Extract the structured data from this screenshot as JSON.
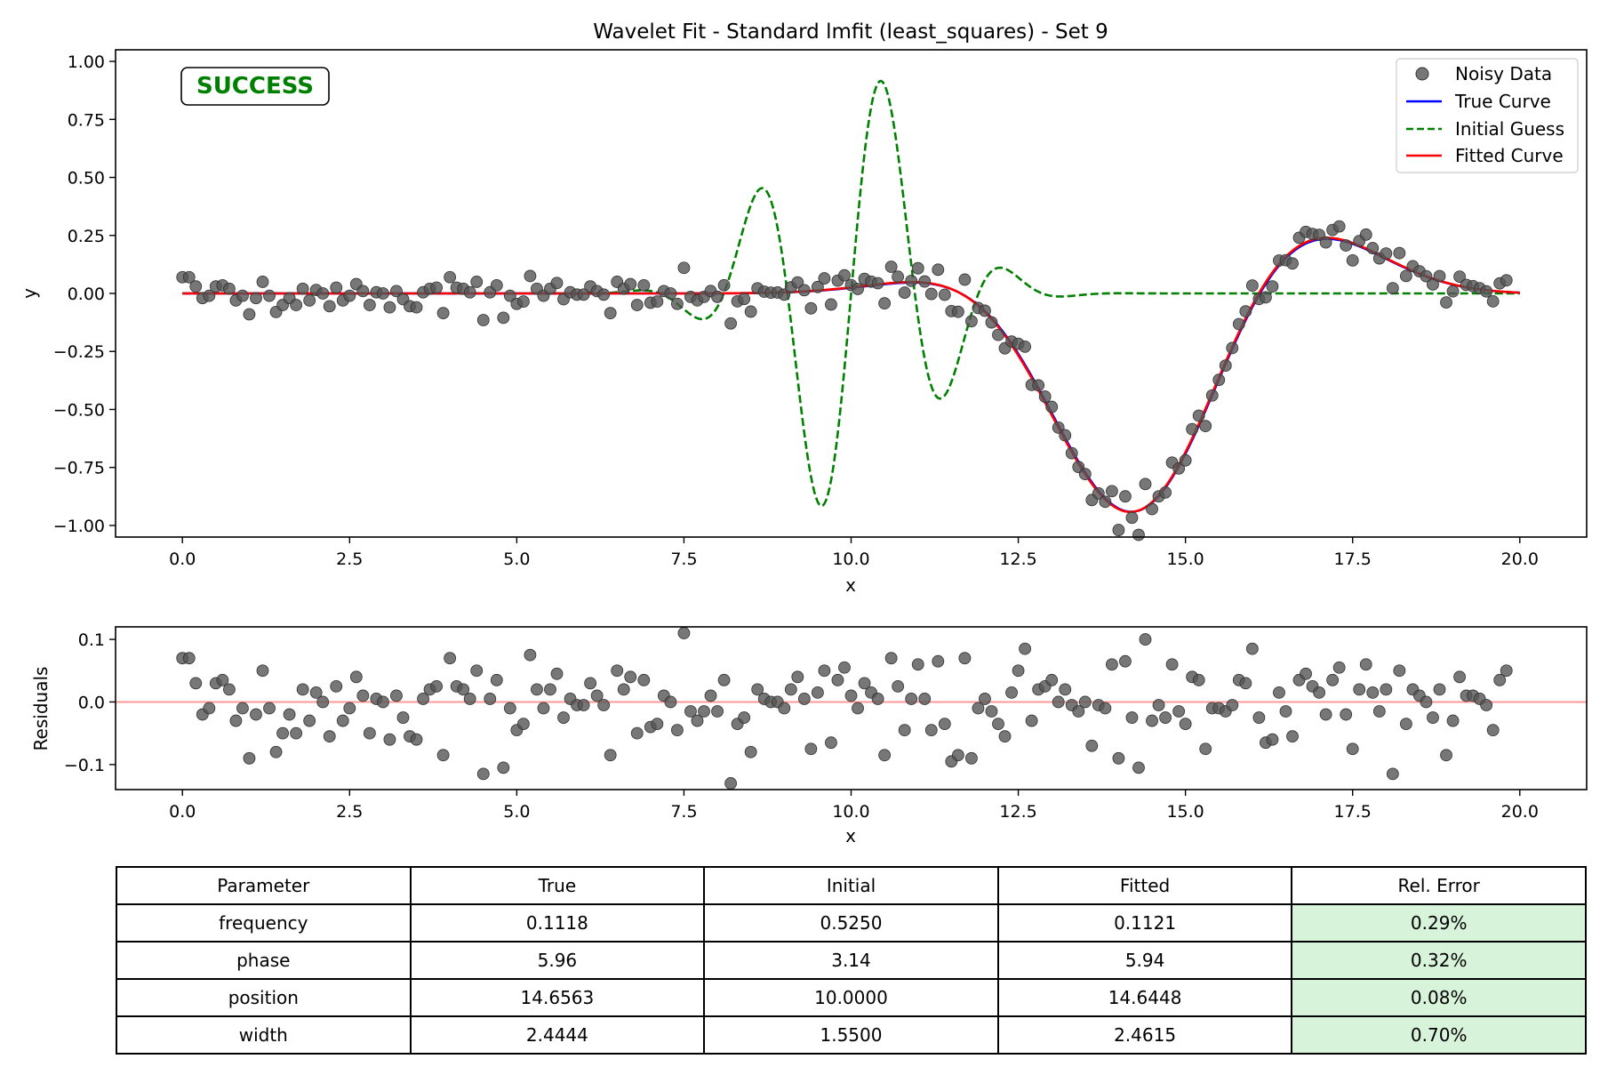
{
  "chart_data": {
    "figure_title": "Wavelet Fit - Standard lmfit (least_squares) - Set 9",
    "status_badge": {
      "text": "SUCCESS",
      "color": "#008000"
    },
    "colors": {
      "noisy": "#555555",
      "true": "#0000ff",
      "initial": "#008000",
      "fitted": "#ff0000",
      "zero_line": "#ff9999",
      "good_error_cell": "#d7f3d9"
    },
    "main": {
      "type": "scatter+line",
      "xlabel": "x",
      "ylabel": "y",
      "xlim": [
        -1.0,
        21.0
      ],
      "ylim": [
        -1.05,
        1.05
      ],
      "xticks": [
        0,
        2.5,
        5,
        7.5,
        10,
        12.5,
        15,
        17.5,
        20
      ],
      "xtick_labels": [
        "0.0",
        "2.5",
        "5.0",
        "7.5",
        "10.0",
        "12.5",
        "15.0",
        "17.5",
        "20.0"
      ],
      "yticks": [
        1,
        0.75,
        0.5,
        0.25,
        0,
        -0.25,
        -0.5,
        -0.75,
        -1
      ],
      "ytick_labels": [
        "1.00",
        "0.75",
        "0.50",
        "0.25",
        "0.00",
        "−0.25",
        "−0.50",
        "−0.75",
        "−1.00"
      ],
      "legend_position": "top-right",
      "legend": [
        "Noisy Data",
        "True Curve",
        "Initial Guess",
        "Fitted Curve"
      ],
      "params": {
        "true": {
          "frequency": 0.1118,
          "phase": 5.96,
          "position": 14.6563,
          "width": 2.4444
        },
        "initial": {
          "frequency": 0.525,
          "phase": 3.14,
          "position": 10.0,
          "width": 1.55
        },
        "fitted": {
          "frequency": 0.1121,
          "phase": 5.94,
          "position": 14.6448,
          "width": 2.4615
        }
      }
    },
    "residuals_panel": {
      "type": "scatter",
      "xlabel": "x",
      "ylabel": "Residuals",
      "xlim": [
        -1.0,
        21.0
      ],
      "ylim": [
        -0.14,
        0.12
      ],
      "xticks": [
        0,
        2.5,
        5,
        7.5,
        10,
        12.5,
        15,
        17.5,
        20
      ],
      "xtick_labels": [
        "0.0",
        "2.5",
        "5.0",
        "7.5",
        "10.0",
        "12.5",
        "15.0",
        "17.5",
        "20.0"
      ],
      "yticks": [
        0.1,
        0,
        -0.1
      ],
      "ytick_labels": [
        "0.1",
        "0.0",
        "−0.1"
      ],
      "x_start": 0,
      "x_step": 0.1,
      "values": [
        0.07,
        0.07,
        0.03,
        -0.02,
        -0.01,
        0.03,
        0.035,
        0.02,
        -0.03,
        -0.01,
        -0.09,
        -0.02,
        0.05,
        -0.01,
        -0.08,
        -0.05,
        -0.02,
        -0.05,
        0.02,
        -0.03,
        0.015,
        0.0,
        -0.055,
        0.025,
        -0.03,
        -0.01,
        0.04,
        0.01,
        -0.05,
        0.005,
        0.0,
        -0.06,
        0.01,
        -0.025,
        -0.055,
        -0.06,
        0.005,
        0.02,
        0.025,
        -0.085,
        0.07,
        0.025,
        0.02,
        0.005,
        0.05,
        -0.115,
        0.005,
        0.035,
        -0.105,
        -0.01,
        -0.045,
        -0.035,
        0.075,
        0.02,
        -0.01,
        0.02,
        0.045,
        -0.025,
        0.005,
        -0.005,
        -0.005,
        0.03,
        0.01,
        -0.005,
        -0.085,
        0.05,
        0.02,
        0.04,
        -0.05,
        0.035,
        -0.04,
        -0.035,
        0.01,
        0.0,
        -0.045,
        0.11,
        -0.015,
        -0.03,
        -0.015,
        0.01,
        -0.015,
        0.035,
        -0.13,
        -0.035,
        -0.025,
        -0.08,
        0.02,
        0.005,
        0.0,
        0.0,
        -0.01,
        0.02,
        0.04,
        0.005,
        -0.075,
        0.015,
        0.05,
        -0.065,
        0.035,
        0.055,
        0.01,
        -0.01,
        0.03,
        0.015,
        0.005,
        -0.085,
        0.07,
        0.025,
        -0.045,
        0.005,
        0.06,
        0.005,
        -0.045,
        0.065,
        -0.035,
        -0.095,
        -0.085,
        0.07,
        -0.09,
        -0.01,
        0.005,
        -0.015,
        -0.035,
        -0.055,
        0.015,
        0.05,
        0.085,
        -0.03,
        0.02,
        0.025,
        0.035,
        0.0,
        0.02,
        -0.005,
        -0.015,
        0.0,
        -0.07,
        -0.005,
        -0.01,
        0.06,
        -0.09,
        0.065,
        -0.025,
        -0.105,
        0.1,
        -0.03,
        -0.005,
        -0.025,
        0.06,
        -0.015,
        -0.035,
        0.04,
        0.035,
        -0.075,
        -0.01,
        -0.01,
        -0.015,
        -0.005,
        0.035,
        0.03,
        0.085,
        -0.025,
        -0.065,
        -0.06,
        0.015,
        -0.015,
        -0.055,
        0.035,
        0.045,
        0.025,
        0.015,
        -0.02,
        0.035,
        0.055,
        -0.02,
        -0.075,
        0.02,
        0.06,
        0.015,
        -0.015,
        0.02,
        -0.115,
        0.05,
        -0.035,
        0.02,
        0.01,
        0.0,
        -0.025,
        0.02,
        -0.085,
        -0.03,
        0.04,
        0.01,
        0.01,
        0.005,
        -0.005,
        -0.045,
        0.035,
        0.05
      ]
    },
    "table": {
      "type": "table",
      "headers": [
        "Parameter",
        "True",
        "Initial",
        "Fitted",
        "Rel. Error"
      ],
      "rows": [
        [
          "frequency",
          "0.1118",
          "0.5250",
          "0.1121",
          "0.29%"
        ],
        [
          "phase",
          "5.96",
          "3.14",
          "5.94",
          "0.32%"
        ],
        [
          "position",
          "14.6563",
          "10.0000",
          "14.6448",
          "0.08%"
        ],
        [
          "width",
          "2.4444",
          "1.5500",
          "2.4615",
          "0.70%"
        ]
      ]
    }
  }
}
